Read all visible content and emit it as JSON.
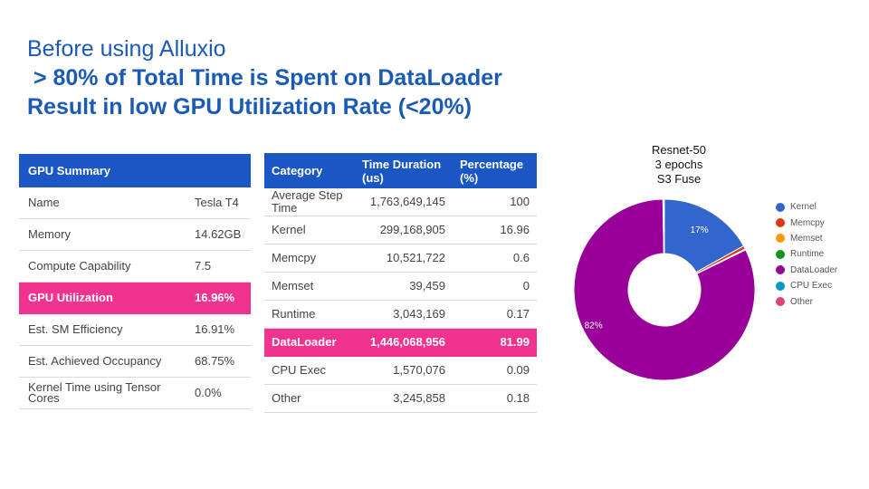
{
  "title": {
    "line1": "Before using Alluxio",
    "line2": " > 80% of Total Time is Spent on DataLoader",
    "line3": "Result in low GPU Utilization Rate (<20%)"
  },
  "gpu_summary": {
    "header": "GPU Summary",
    "rows": [
      {
        "name": "Name",
        "value": "Tesla T4"
      },
      {
        "name": "Memory",
        "value": "14.62GB"
      },
      {
        "name": "Compute Capability",
        "value": "7.5"
      },
      {
        "name": "GPU Utilization",
        "value": "16.96%"
      },
      {
        "name": "Est. SM Efficiency",
        "value": "16.91%"
      },
      {
        "name": "Est. Achieved Occupancy",
        "value": "68.75%"
      },
      {
        "name": "Kernel Time using Tensor Cores",
        "value": "0.0%"
      }
    ]
  },
  "category_table": {
    "headers": [
      "Category",
      "Time Duration (us)",
      "Percentage (%)"
    ],
    "rows": [
      [
        "Average Step Time",
        "1,763,649,145",
        "100"
      ],
      [
        "Kernel",
        "299,168,905",
        "16.96"
      ],
      [
        "Memcpy",
        "10,521,722",
        "0.6"
      ],
      [
        "Memset",
        "39,459",
        "0"
      ],
      [
        "Runtime",
        "3,043,169",
        "0.17"
      ],
      [
        "DataLoader",
        "1,446,068,956",
        "81.99"
      ],
      [
        "CPU Exec",
        "1,570,076",
        "0.09"
      ],
      [
        "Other",
        "3,245,858",
        "0.18"
      ]
    ]
  },
  "chart_data": {
    "type": "pie",
    "title": "Resnet-50\n3 epochs\nS3 Fuse",
    "donut": true,
    "legend_position": "right",
    "slices": [
      {
        "label": "Kernel",
        "value": 16.96,
        "color": "#3366cc",
        "data_label": "17%"
      },
      {
        "label": "Memcpy",
        "value": 0.6,
        "color": "#dc3912",
        "data_label": ""
      },
      {
        "label": "Memset",
        "value": 0,
        "color": "#ff9900",
        "data_label": ""
      },
      {
        "label": "Runtime",
        "value": 0.17,
        "color": "#109618",
        "data_label": ""
      },
      {
        "label": "DataLoader",
        "value": 81.99,
        "color": "#990099",
        "data_label": "82%"
      },
      {
        "label": "CPU Exec",
        "value": 0.09,
        "color": "#0099c6",
        "data_label": ""
      },
      {
        "label": "Other",
        "value": 0.18,
        "color": "#dd4477",
        "data_label": ""
      }
    ]
  }
}
